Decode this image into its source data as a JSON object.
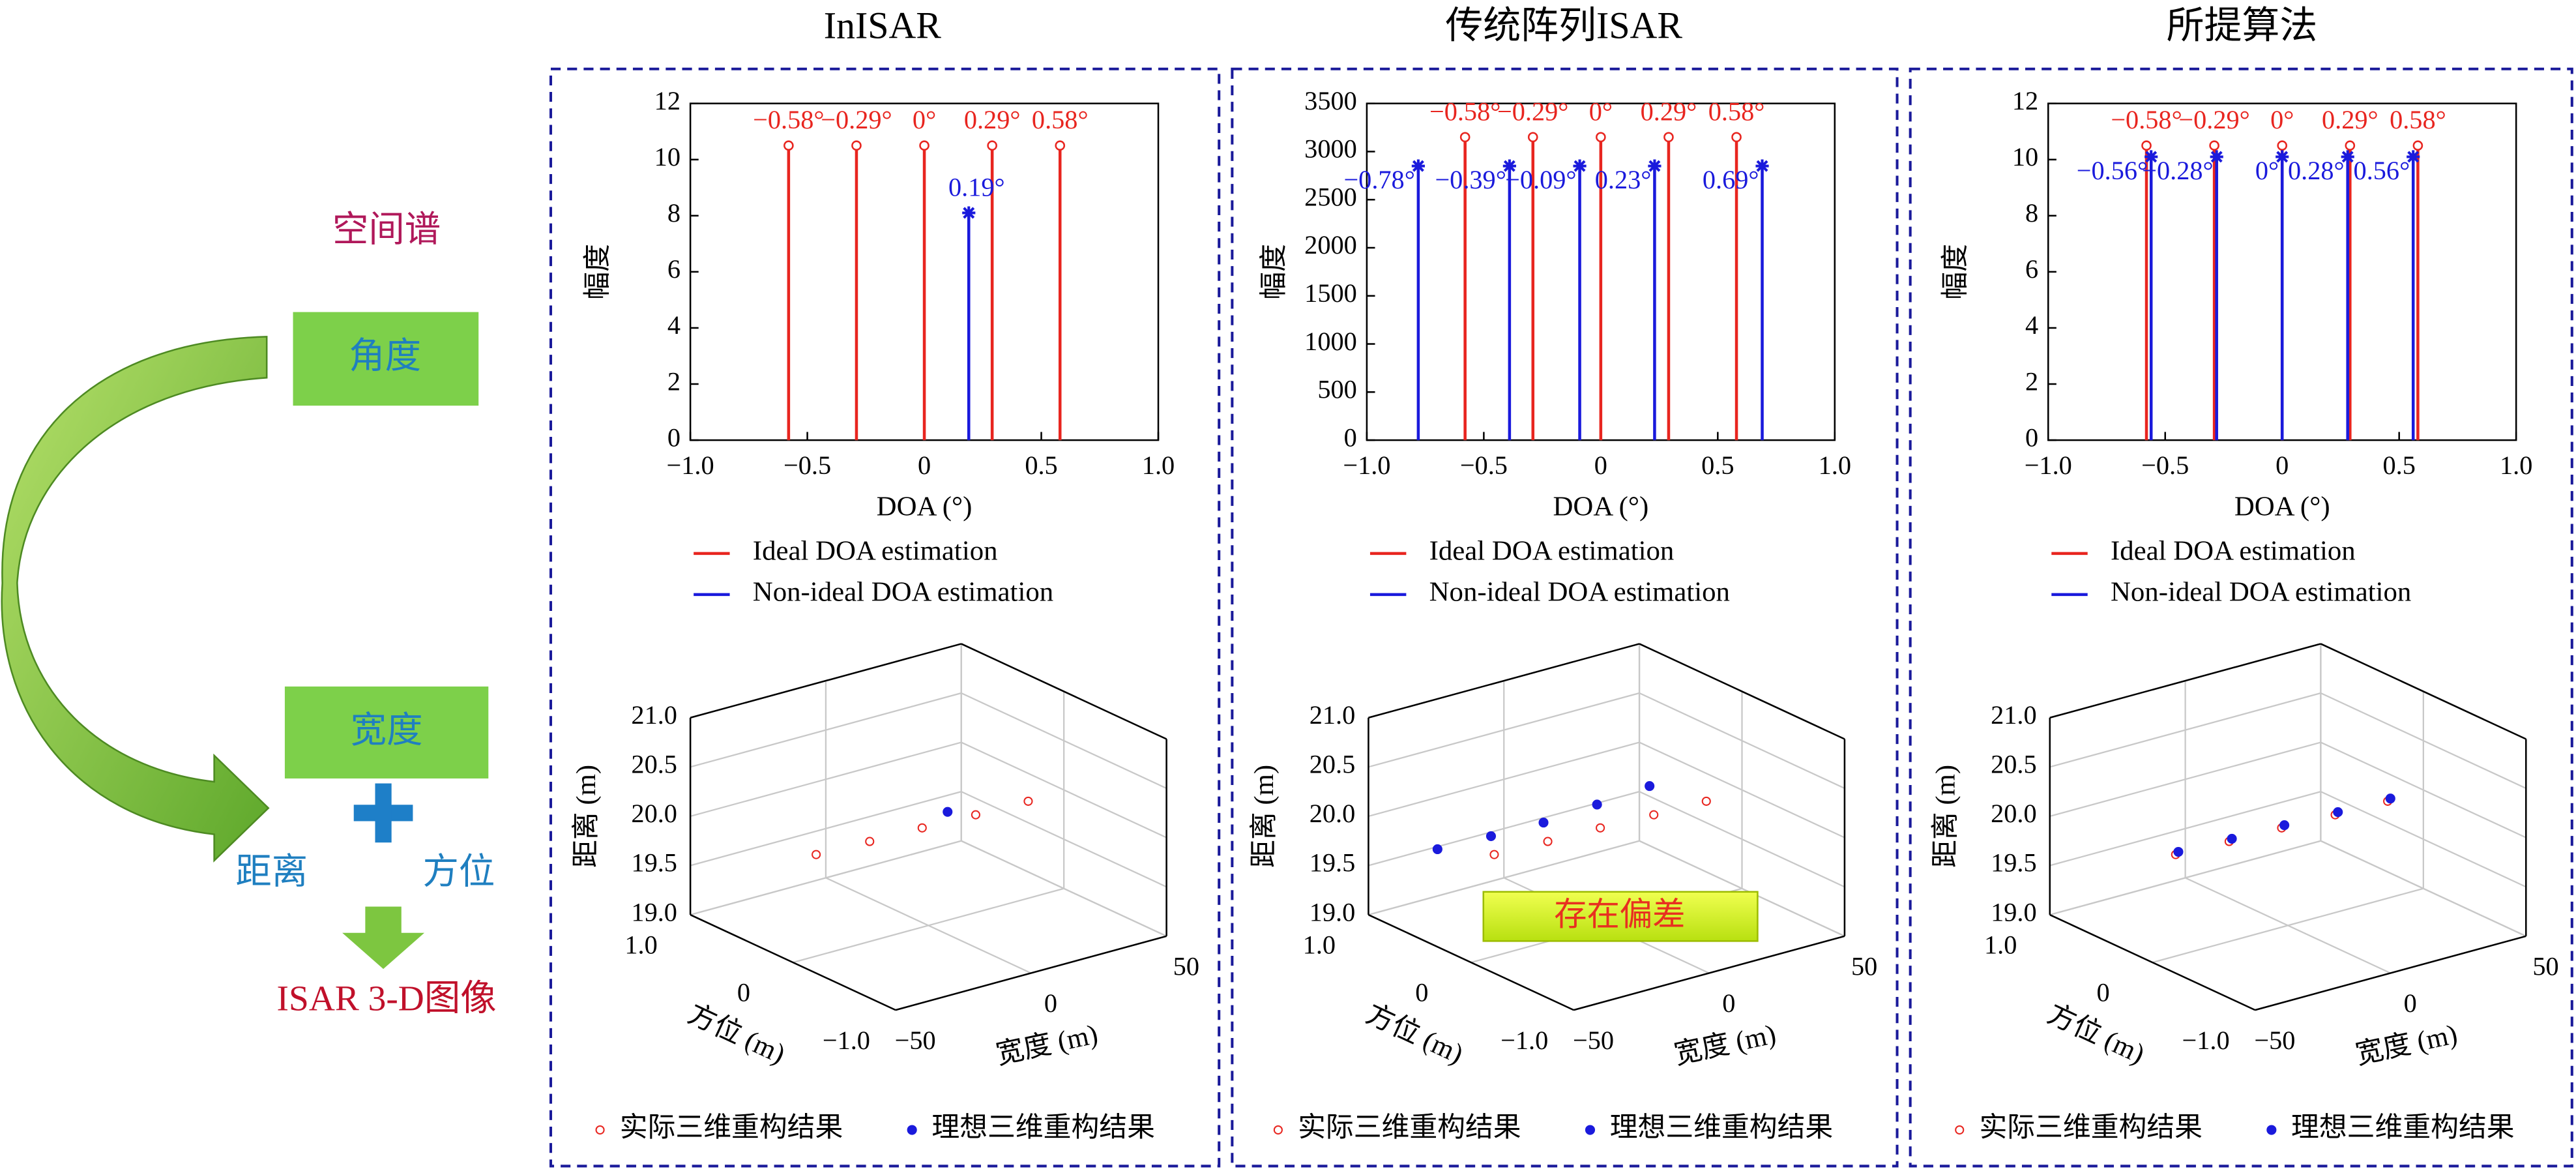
{
  "diagram": {
    "labels": {
      "spectrum": "空间谱",
      "angle": "角度",
      "width": "宽度",
      "range": "距离",
      "azimuth": "方位",
      "output": "ISAR 3-D图像"
    }
  },
  "chart_data": [
    {
      "type": "stem",
      "title": "InISAR",
      "xlabel": "DOA (°)",
      "ylabel": "幅度",
      "xlim": [
        -1,
        1
      ],
      "xticks": [
        {
          "value": -1,
          "label": "−1.0"
        },
        {
          "value": -0.5,
          "label": "−0.5"
        },
        0,
        0.5,
        {
          "value": 1,
          "label": "1.0"
        }
      ],
      "ylim": [
        0,
        12
      ],
      "yticks": [
        0,
        2,
        4,
        6,
        8,
        10,
        12
      ],
      "series": [
        {
          "name": "Ideal DOA estimation",
          "color": "#e8251f",
          "marker": "circle",
          "x": [
            -0.58,
            -0.29,
            0,
            0.29,
            0.58
          ],
          "values": [
            10.5,
            10.5,
            10.5,
            10.5,
            10.5
          ],
          "x_labels": [
            "−0.58°",
            "−0.29°",
            "0°",
            "0.29°",
            "0.58°"
          ]
        },
        {
          "name": "Non-ideal DOA estimation",
          "color": "#1a1adc",
          "marker": "star",
          "x": [
            0.19
          ],
          "values": [
            8.1
          ],
          "x_labels": [
            "0.19°"
          ]
        }
      ]
    },
    {
      "type": "scatter3d",
      "xlabel": "方位 (m)",
      "ylabel": "宽度 (m)",
      "zlabel": "距离 (m)",
      "xlim": [
        -1,
        1
      ],
      "xticks": [
        {
          "value": 1,
          "label": "1.0"
        },
        0,
        {
          "value": -1,
          "label": "−1.0"
        }
      ],
      "ylim": [
        -50,
        50
      ],
      "yticks": [
        {
          "value": -50,
          "label": "−50"
        },
        0,
        50
      ],
      "zlim": [
        19,
        21
      ],
      "zticks": [
        {
          "value": 19,
          "label": "19.0"
        },
        19.5,
        {
          "value": 20,
          "label": "20.0"
        },
        20.5,
        {
          "value": 21,
          "label": "21.0"
        }
      ],
      "series": [
        {
          "name": "实际三维重构结果",
          "color": "#e8251f",
          "marker": "open",
          "x": [
            0.17,
            0.15,
            0.14,
            0.12,
            0.11
          ],
          "y": [
            -35,
            -16,
            3,
            22,
            41
          ],
          "z": [
            19.9,
            19.9,
            19.9,
            19.9,
            19.9
          ]
        },
        {
          "name": "理想三维重构结果",
          "color": "#1a1adc",
          "marker": "filled",
          "x": [
            0.13
          ],
          "y": [
            12
          ],
          "z": [
            20.0
          ]
        }
      ]
    },
    {
      "type": "stem",
      "title": "传统阵列ISAR",
      "xlabel": "DOA (°)",
      "ylabel": "幅度",
      "xlim": [
        -1,
        1
      ],
      "xticks": [
        {
          "value": -1,
          "label": "−1.0"
        },
        {
          "value": -0.5,
          "label": "−0.5"
        },
        0,
        0.5,
        {
          "value": 1,
          "label": "1.0"
        }
      ],
      "ylim": [
        0,
        3500
      ],
      "yticks": [
        0,
        500,
        1000,
        1500,
        2000,
        2500,
        3000,
        3500
      ],
      "series": [
        {
          "name": "Ideal DOA estimation",
          "color": "#e8251f",
          "marker": "circle",
          "x": [
            -0.58,
            -0.29,
            0,
            0.29,
            0.58
          ],
          "values": [
            3150,
            3150,
            3150,
            3150,
            3150
          ],
          "x_labels": [
            "−0.58°",
            "−0.29°",
            "0°",
            "0.29°",
            "0.58°"
          ]
        },
        {
          "name": "Non-ideal DOA estimation",
          "color": "#1a1adc",
          "marker": "star",
          "x": [
            -0.78,
            -0.39,
            -0.09,
            0.23,
            0.69
          ],
          "values": [
            2850,
            2850,
            2850,
            2850,
            2850
          ],
          "x_labels": [
            "−0.78°",
            "−0.39°",
            "−0.09°",
            "0.23°",
            "0.69°"
          ]
        }
      ]
    },
    {
      "type": "scatter3d",
      "xlabel": "方位 (m)",
      "ylabel": "宽度 (m)",
      "zlabel": "距离 (m)",
      "annotation": "存在偏差",
      "xlim": [
        -1,
        1
      ],
      "xticks": [
        {
          "value": 1,
          "label": "1.0"
        },
        0,
        {
          "value": -1,
          "label": "−1.0"
        }
      ],
      "ylim": [
        -50,
        50
      ],
      "yticks": [
        {
          "value": -50,
          "label": "−50"
        },
        0,
        50
      ],
      "zlim": [
        19,
        21
      ],
      "zticks": [
        {
          "value": 19,
          "label": "19.0"
        },
        19.5,
        {
          "value": 20,
          "label": "20.0"
        },
        20.5,
        {
          "value": 21,
          "label": "21.0"
        }
      ],
      "series": [
        {
          "name": "实际三维重构结果",
          "color": "#e8251f",
          "marker": "open",
          "x": [
            0.17,
            0.15,
            0.14,
            0.12,
            0.11
          ],
          "y": [
            -35,
            -16,
            3,
            22,
            41
          ],
          "z": [
            19.9,
            19.9,
            19.9,
            19.9,
            19.9
          ]
        },
        {
          "name": "理想三维重构结果",
          "color": "#1a1adc",
          "marker": "filled",
          "x": [
            0.38,
            0.36,
            0.35,
            0.33,
            0.32
          ],
          "y": [
            -48,
            -29,
            -10,
            9,
            28
          ],
          "z": [
            19.95,
            19.95,
            19.95,
            20.0,
            20.05
          ]
        }
      ]
    },
    {
      "type": "stem",
      "title": "所提算法",
      "xlabel": "DOA (°)",
      "ylabel": "幅度",
      "xlim": [
        -1,
        1
      ],
      "xticks": [
        {
          "value": -1,
          "label": "−1.0"
        },
        {
          "value": -0.5,
          "label": "−0.5"
        },
        0,
        0.5,
        {
          "value": 1,
          "label": "1.0"
        }
      ],
      "ylim": [
        0,
        12
      ],
      "yticks": [
        0,
        2,
        4,
        6,
        8,
        10,
        12
      ],
      "series": [
        {
          "name": "Ideal DOA estimation",
          "color": "#e8251f",
          "marker": "circle",
          "x": [
            -0.58,
            -0.29,
            0,
            0.29,
            0.58
          ],
          "values": [
            10.5,
            10.5,
            10.5,
            10.5,
            10.5
          ],
          "x_labels": [
            "−0.58°",
            "−0.29°",
            "0°",
            "0.29°",
            "0.58°"
          ]
        },
        {
          "name": "Non-ideal DOA estimation",
          "color": "#1a1adc",
          "marker": "star",
          "x": [
            -0.56,
            -0.28,
            0,
            0.28,
            0.56
          ],
          "values": [
            10.1,
            10.1,
            10.1,
            10.1,
            10.1
          ],
          "x_labels": [
            "−0.56°",
            "−0.28°",
            "0°",
            "0.28°",
            "0.56°"
          ]
        }
      ]
    },
    {
      "type": "scatter3d",
      "xlabel": "方位 (m)",
      "ylabel": "宽度 (m)",
      "zlabel": "距离 (m)",
      "xlim": [
        -1,
        1
      ],
      "xticks": [
        {
          "value": 1,
          "label": "1.0"
        },
        0,
        {
          "value": -1,
          "label": "−1.0"
        }
      ],
      "ylim": [
        -50,
        50
      ],
      "yticks": [
        {
          "value": -50,
          "label": "−50"
        },
        0,
        50
      ],
      "zlim": [
        19,
        21
      ],
      "zticks": [
        {
          "value": 19,
          "label": "19.0"
        },
        19.5,
        {
          "value": 20,
          "label": "20.0"
        },
        20.5,
        {
          "value": 21,
          "label": "21.0"
        }
      ],
      "series": [
        {
          "name": "实际三维重构结果",
          "color": "#e8251f",
          "marker": "open",
          "x": [
            0.17,
            0.15,
            0.14,
            0.12,
            0.11
          ],
          "y": [
            -35,
            -16,
            3,
            22,
            41
          ],
          "z": [
            19.9,
            19.9,
            19.9,
            19.9,
            19.9
          ]
        },
        {
          "name": "理想三维重构结果",
          "color": "#1a1adc",
          "marker": "filled",
          "x": [
            0.17,
            0.15,
            0.14,
            0.12,
            0.11
          ],
          "y": [
            -34,
            -15,
            4,
            23,
            42
          ],
          "z": [
            19.92,
            19.92,
            19.92,
            19.92,
            19.92
          ]
        }
      ]
    }
  ]
}
